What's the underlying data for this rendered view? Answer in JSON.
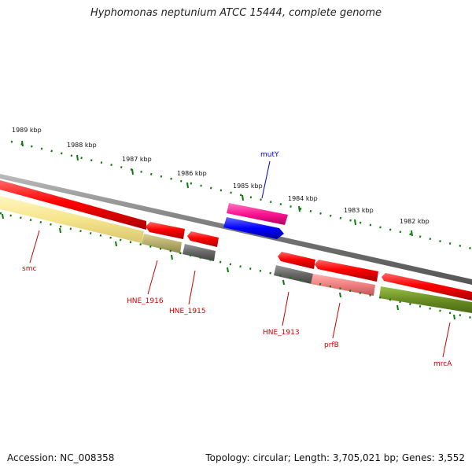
{
  "title": "Hyphomonas neptunium ATCC 15444, complete genome",
  "footer": {
    "accession": "Accession: NC_008358",
    "topology": "Topology: circular; Length: 3,705,021 bp; Genes: 3,552"
  },
  "colors": {
    "forward": "#ff0000",
    "reverse": "#ff0000",
    "pseudo_gray": "#666666",
    "smc": "#f5e58c",
    "olive": "#6b8e23",
    "mutY_pink": "#ff1493",
    "mutY_blue": "#0000ff",
    "prfB_light": "#f08080",
    "tick_green": "#006400",
    "label_red": "#cc0000",
    "label_blue": "#0000cc"
  },
  "scale_labels": [
    "1989 kbp",
    "1988 kbp",
    "1987 kbp",
    "1986 kbp",
    "1985 kbp",
    "1984 kbp",
    "1983 kbp",
    "1982 kbp"
  ],
  "gene_labels": [
    {
      "id": "mutY",
      "text": "mutY",
      "color": "label_blue"
    },
    {
      "id": "smc",
      "text": "smc",
      "color": "label_red"
    },
    {
      "id": "HNE_1916",
      "text": "HNE_1916",
      "color": "label_red"
    },
    {
      "id": "HNE_1915",
      "text": "HNE_1915",
      "color": "label_red"
    },
    {
      "id": "HNE_1913",
      "text": "HNE_1913",
      "color": "label_red"
    },
    {
      "id": "prfB",
      "text": "prfB",
      "color": "label_red"
    },
    {
      "id": "mrcA",
      "text": "mrcA",
      "color": "label_red"
    }
  ]
}
